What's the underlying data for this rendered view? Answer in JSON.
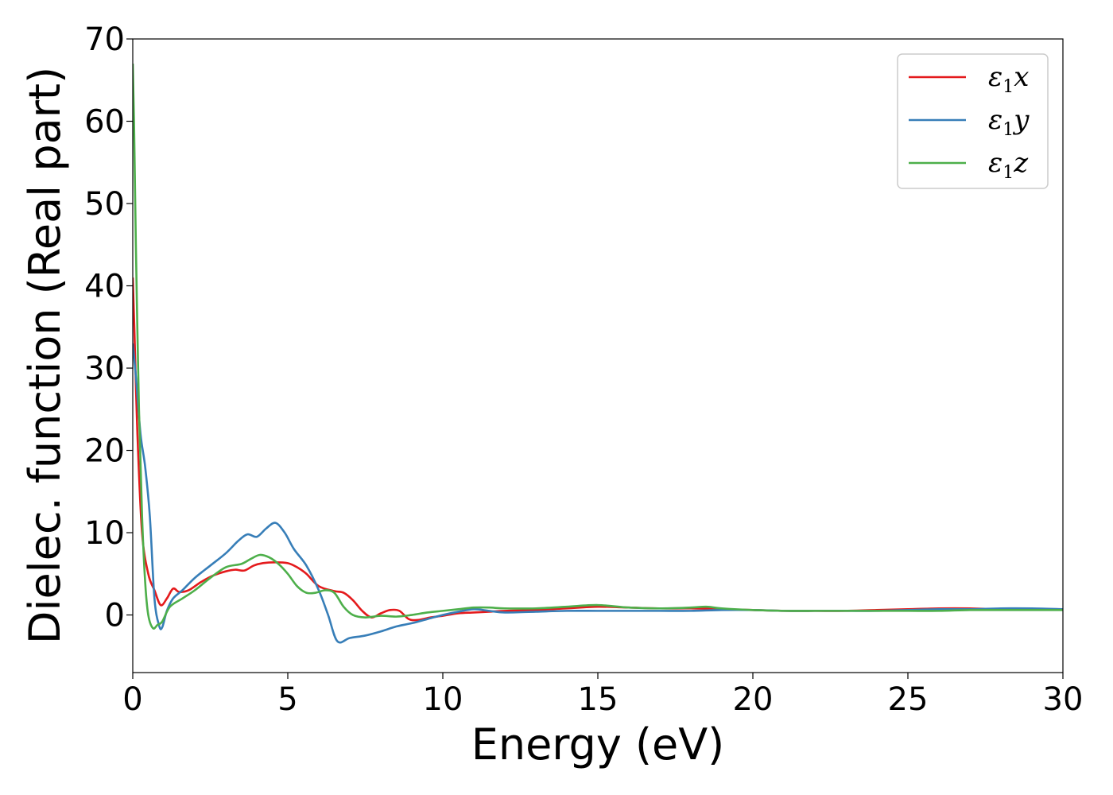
{
  "chart_data": {
    "type": "line",
    "title": "",
    "xlabel": "Energy (eV)",
    "ylabel": "Dielec. function (Real part)",
    "xlim": [
      0,
      30
    ],
    "ylim": [
      -7,
      70
    ],
    "xticks": [
      "0",
      "5",
      "10",
      "15",
      "20",
      "25",
      "30"
    ],
    "yticks": [
      "0",
      "10",
      "20",
      "30",
      "40",
      "50",
      "60",
      "70"
    ],
    "grid": false,
    "legend_position": "top-right",
    "series": [
      {
        "name": "ε1x",
        "legend": {
          "symbol": "ε",
          "sub": "1",
          "axis": "x"
        },
        "color": "#e41a1c",
        "x": [
          0,
          0.05,
          0.15,
          0.3,
          0.5,
          0.7,
          0.9,
          1.1,
          1.3,
          1.5,
          1.8,
          2.2,
          2.6,
          3.0,
          3.3,
          3.6,
          3.9,
          4.2,
          4.6,
          5.0,
          5.3,
          5.6,
          6.0,
          6.5,
          6.8,
          7.1,
          7.4,
          7.7,
          8.0,
          8.3,
          8.6,
          8.9,
          9.2,
          9.6,
          10.0,
          10.5,
          11.0,
          11.5,
          12.0,
          13.0,
          14.0,
          15.0,
          16.0,
          17.0,
          18.0,
          19.0,
          20.0,
          21.0,
          22.0,
          23.0,
          24.0,
          25.0,
          26.0,
          27.0,
          28.0,
          29.0,
          30.0
        ],
        "y": [
          41,
          35,
          22,
          10,
          5,
          3,
          1.2,
          2.0,
          3.2,
          2.8,
          3.0,
          4.0,
          4.8,
          5.3,
          5.5,
          5.4,
          6.0,
          6.3,
          6.4,
          6.3,
          5.8,
          5.0,
          3.5,
          2.9,
          2.7,
          1.8,
          0.5,
          -0.3,
          0.2,
          0.6,
          0.5,
          -0.5,
          -0.6,
          -0.3,
          -0.1,
          0.2,
          0.3,
          0.4,
          0.5,
          0.6,
          0.8,
          1.0,
          0.9,
          0.8,
          0.8,
          0.7,
          0.6,
          0.5,
          0.5,
          0.5,
          0.6,
          0.7,
          0.8,
          0.8,
          0.7,
          0.7,
          0.7
        ]
      },
      {
        "name": "ε1y",
        "legend": {
          "symbol": "ε",
          "sub": "1",
          "axis": "y"
        },
        "color": "#377eb8",
        "x": [
          0,
          0.1,
          0.25,
          0.4,
          0.55,
          0.7,
          0.85,
          0.95,
          1.1,
          1.3,
          1.6,
          2.0,
          2.5,
          3.0,
          3.4,
          3.7,
          4.0,
          4.3,
          4.6,
          4.9,
          5.2,
          5.6,
          6.0,
          6.3,
          6.6,
          7.0,
          7.5,
          8.0,
          8.5,
          9.0,
          9.5,
          10.0,
          10.5,
          11.0,
          11.5,
          12.0,
          13.0,
          14.0,
          15.0,
          16.0,
          17.0,
          18.0,
          19.0,
          20.0,
          21.0,
          22.0,
          23.0,
          24.0,
          25.0,
          26.0,
          27.0,
          28.0,
          29.0,
          30.0
        ],
        "y": [
          33,
          29,
          22,
          18,
          12,
          2,
          -1.3,
          -1.5,
          0.5,
          2.0,
          3.0,
          4.5,
          6.0,
          7.5,
          9.0,
          9.8,
          9.5,
          10.5,
          11.2,
          10.0,
          8.0,
          6.0,
          3.0,
          0,
          -3.2,
          -2.8,
          -2.5,
          -2.0,
          -1.4,
          -1.0,
          -0.5,
          0.0,
          0.4,
          0.7,
          0.5,
          0.3,
          0.4,
          0.5,
          0.5,
          0.5,
          0.5,
          0.5,
          0.6,
          0.6,
          0.5,
          0.5,
          0.5,
          0.5,
          0.6,
          0.7,
          0.7,
          0.8,
          0.8,
          0.7
        ]
      },
      {
        "name": "ε1z",
        "legend": {
          "symbol": "ε",
          "sub": "1",
          "axis": "z"
        },
        "color": "#4daf4a",
        "x": [
          0,
          0.04,
          0.1,
          0.2,
          0.3,
          0.4,
          0.5,
          0.65,
          0.8,
          0.95,
          1.2,
          1.6,
          2.0,
          2.5,
          3.0,
          3.5,
          3.8,
          4.1,
          4.4,
          4.7,
          5.0,
          5.3,
          5.6,
          5.9,
          6.2,
          6.5,
          6.8,
          7.1,
          7.5,
          8.0,
          8.5,
          9.0,
          9.5,
          10.0,
          10.5,
          11.0,
          11.5,
          12.0,
          13.0,
          14.0,
          15.0,
          16.0,
          17.0,
          18.0,
          18.5,
          19.0,
          20.0,
          21.0,
          22.0,
          23.0,
          24.0,
          25.0,
          26.0,
          27.0,
          28.0,
          29.0,
          30.0
        ],
        "y": [
          67,
          60,
          45,
          25,
          12,
          4,
          0,
          -1.6,
          -1.2,
          -0.8,
          1.0,
          2.0,
          3.0,
          4.5,
          5.8,
          6.2,
          6.8,
          7.3,
          7.0,
          6.2,
          5.0,
          3.5,
          2.7,
          2.7,
          3.0,
          2.7,
          1.0,
          0,
          -0.3,
          -0.1,
          -0.2,
          0,
          0.3,
          0.5,
          0.7,
          0.9,
          0.9,
          0.8,
          0.8,
          1.0,
          1.2,
          0.9,
          0.8,
          0.9,
          1.0,
          0.8,
          0.6,
          0.5,
          0.5,
          0.5,
          0.5,
          0.5,
          0.5,
          0.6,
          0.6,
          0.6,
          0.6
        ]
      }
    ]
  }
}
